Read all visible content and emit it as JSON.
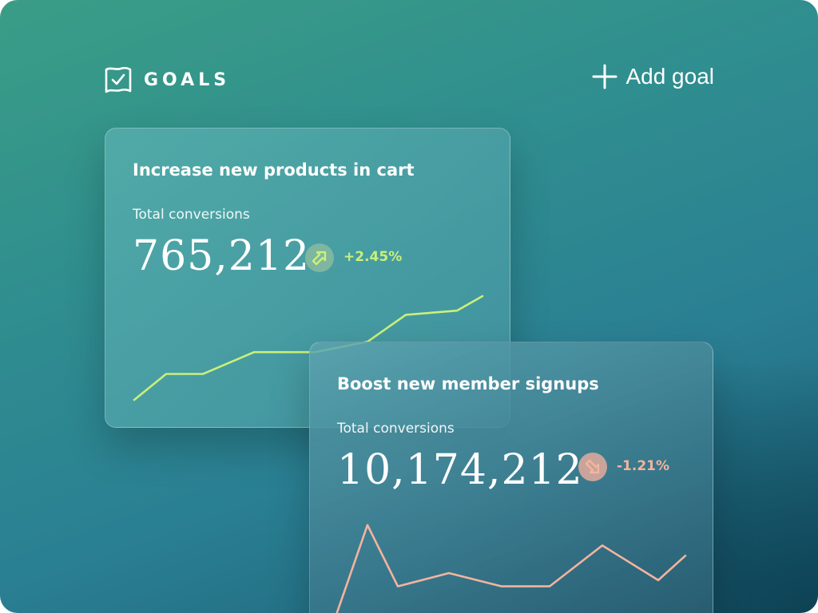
{
  "header": {
    "brand_label": "GOALS",
    "add_goal_label": "Add goal"
  },
  "icons": {
    "brand": "flag-check-icon",
    "add": "plus-icon",
    "up": "arrow-up-right-icon",
    "down": "arrow-down-right-icon"
  },
  "colors": {
    "positive": "#c9f07a",
    "negative": "#f4b49e",
    "positive_badge": "#7fb6a0",
    "negative_badge": "#c9a49a"
  },
  "goals": [
    {
      "title": "Increase new products in cart",
      "metric_label": "Total conversions",
      "value": "765,212",
      "delta": "+2.45%",
      "trend": "up",
      "series": [
        0.0,
        0.25,
        0.25,
        0.46,
        0.46,
        0.46,
        0.56,
        0.82,
        0.86,
        1.0
      ]
    },
    {
      "title": "Boost new member signups",
      "metric_label": "Total conversions",
      "value": "10,174,212",
      "delta": "-1.21%",
      "trend": "down",
      "series": [
        0.0,
        0.9,
        0.3,
        0.43,
        0.3,
        0.3,
        0.7,
        0.36,
        0.6
      ]
    }
  ]
}
